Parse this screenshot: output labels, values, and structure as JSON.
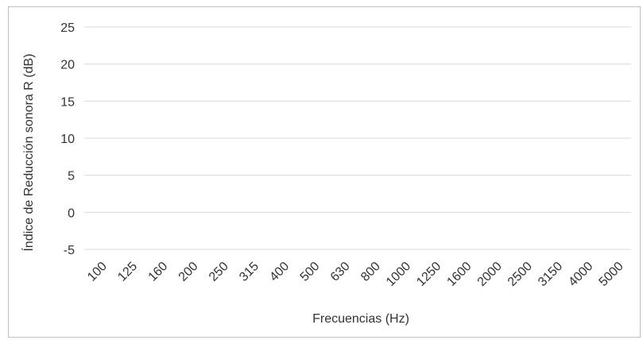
{
  "chart_data": {
    "type": "line",
    "title": "",
    "xlabel": "Frecuencias (Hz)",
    "ylabel": "Índice de Reducción sonora R (dB)",
    "categories": [
      "100",
      "125",
      "160",
      "200",
      "250",
      "315",
      "400",
      "500",
      "630",
      "800",
      "1000",
      "1250",
      "1600",
      "2000",
      "2500",
      "3150",
      "4000",
      "5000"
    ],
    "y_ticks": [
      "25",
      "20",
      "15",
      "10",
      "5",
      "0",
      "-5"
    ],
    "ylim": [
      -5,
      25
    ],
    "series": [],
    "grid": "horizontal",
    "legend": "none"
  },
  "colors": {
    "gridline": "#d9d9d9",
    "frame": "#bfbfbf",
    "text": "#333333"
  }
}
